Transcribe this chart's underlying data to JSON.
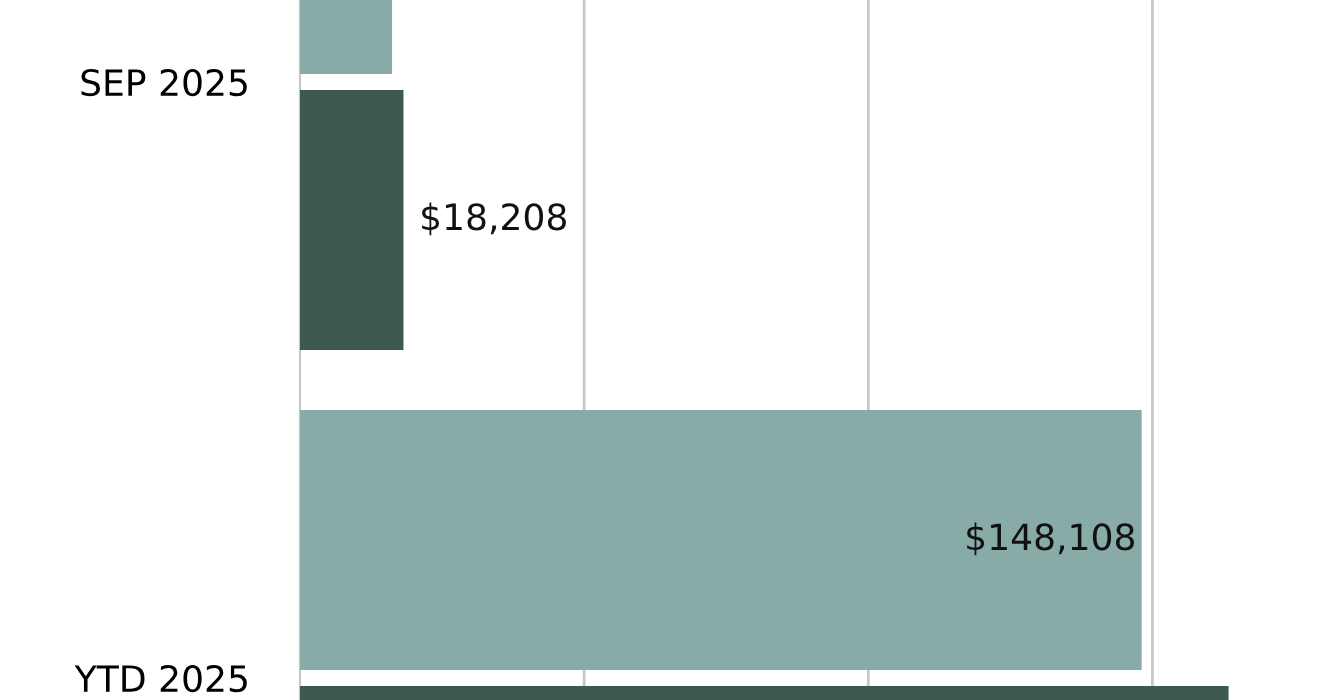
{
  "chart_data": {
    "type": "bar",
    "orientation": "horizontal",
    "categories": [
      "SEP 2025",
      "YTD 2025"
    ],
    "series": [
      {
        "color": "#89aba8",
        "values": [
          16200,
          148108
        ],
        "value_labels": [
          null,
          "$148,108"
        ]
      },
      {
        "color": "#3e5952",
        "values": [
          18208,
          163400
        ],
        "value_labels": [
          "$18,208",
          null
        ]
      }
    ],
    "ref_lines": [
      {
        "axis": "x",
        "value": 50000,
        "color": "#c8c8c8"
      },
      {
        "axis": "x",
        "value": 100000,
        "color": "#c8c8c8"
      },
      {
        "axis": "x",
        "value": 150000,
        "color": "#c8c8c8"
      }
    ]
  }
}
